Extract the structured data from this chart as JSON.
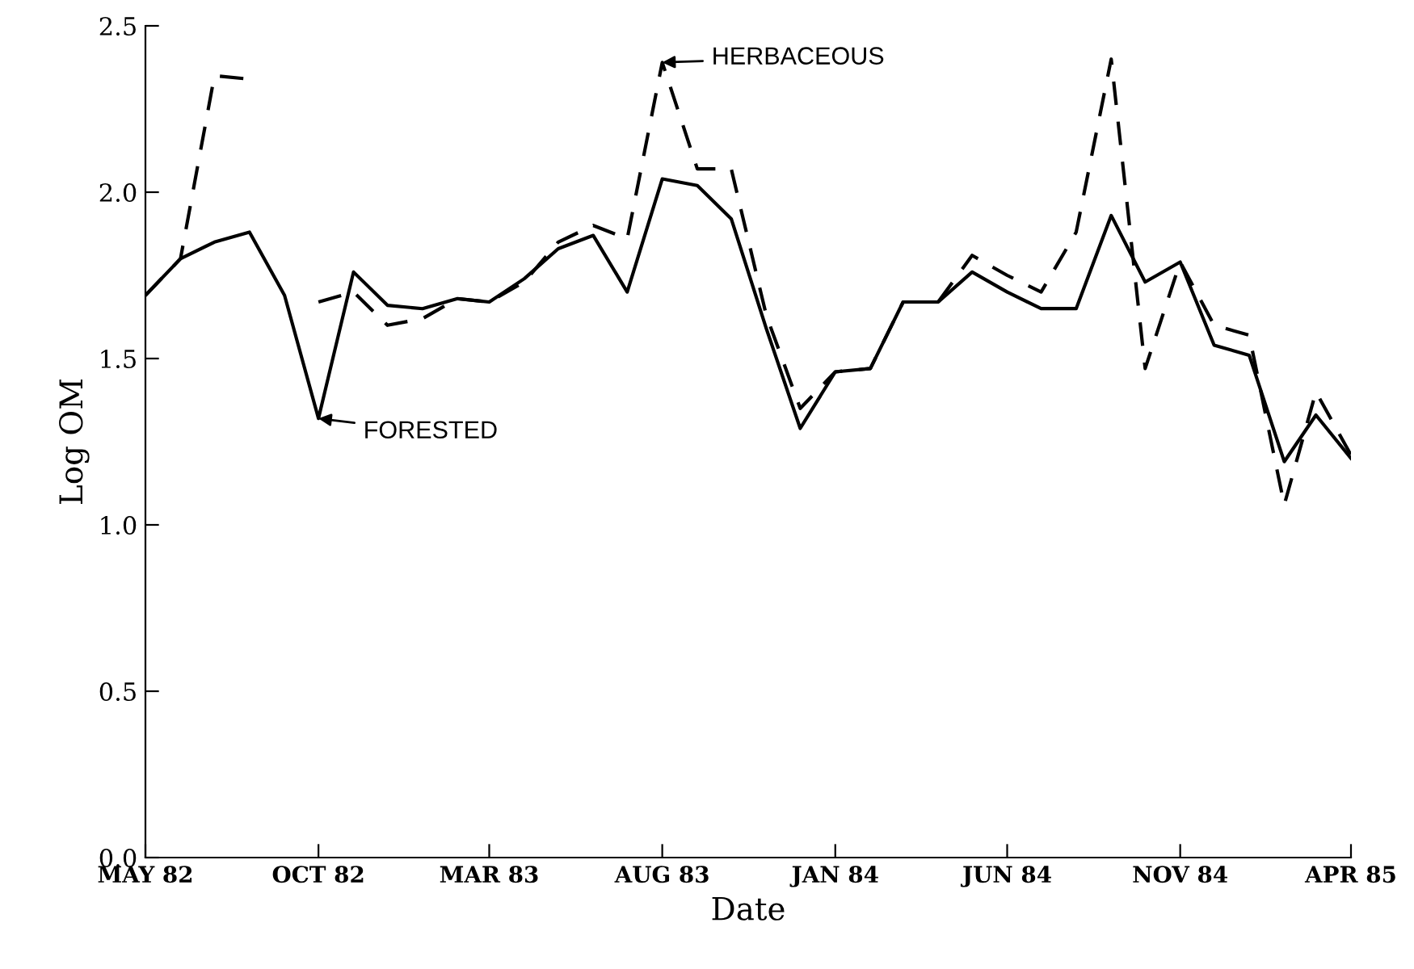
{
  "chart_data": {
    "type": "line",
    "xlabel": "Date",
    "ylabel": "Log OM",
    "x": [
      "1982-05",
      "1982-06",
      "1982-07",
      "1982-08",
      "1982-09",
      "1982-10",
      "1982-11",
      "1982-12",
      "1983-01",
      "1983-02",
      "1983-03",
      "1983-04",
      "1983-05",
      "1983-06",
      "1983-07",
      "1983-08",
      "1983-09",
      "1983-10",
      "1983-11",
      "1983-12",
      "1984-01",
      "1984-02",
      "1984-03",
      "1984-04",
      "1984-05",
      "1984-06",
      "1984-07",
      "1984-08",
      "1984-09",
      "1984-10",
      "1984-11",
      "1984-12",
      "1985-01",
      "1985-02",
      "1985-03",
      "1985-04"
    ],
    "series": [
      {
        "color": "#000000",
        "line_style": "solid",
        "values": [
          1.69,
          1.8,
          1.85,
          1.88,
          1.69,
          1.32,
          1.76,
          1.66,
          1.65,
          1.68,
          1.67,
          1.74,
          1.83,
          1.87,
          1.7,
          2.04,
          2.02,
          1.92,
          1.59,
          1.29,
          1.46,
          1.47,
          1.67,
          1.67,
          1.76,
          1.7,
          1.65,
          1.65,
          1.93,
          1.73,
          1.79,
          1.54,
          1.51,
          1.19,
          1.33,
          1.2
        ]
      },
      {
        "color": "#000000",
        "line_style": "dashed",
        "values": [
          1.69,
          1.8,
          2.35,
          2.34,
          null,
          1.67,
          1.7,
          1.6,
          1.62,
          1.68,
          1.67,
          1.73,
          1.85,
          1.9,
          1.86,
          2.39,
          2.07,
          2.07,
          1.63,
          1.35,
          1.46,
          1.47,
          1.67,
          1.67,
          1.81,
          1.75,
          1.7,
          1.88,
          2.4,
          1.47,
          1.79,
          1.6,
          1.57,
          1.06,
          1.4,
          1.21
        ]
      }
    ],
    "annotations": [
      {
        "text": "FORESTED",
        "x": "1982-10",
        "y": 1.32
      },
      {
        "text": "HERBACEOUS",
        "x": "1983-08",
        "y": 2.39
      }
    ],
    "xlim": [
      "1982-05",
      "1985-04"
    ],
    "xticks": [
      {
        "value": "1982-05",
        "label": "MAY 82"
      },
      {
        "value": "1982-10",
        "label": "OCT 82"
      },
      {
        "value": "1983-03",
        "label": "MAR 83"
      },
      {
        "value": "1983-08",
        "label": "AUG 83"
      },
      {
        "value": "1984-01",
        "label": "JAN 84"
      },
      {
        "value": "1984-06",
        "label": "JUN 84"
      },
      {
        "value": "1984-11",
        "label": "NOV 84"
      },
      {
        "value": "1985-04",
        "label": "APR 85"
      }
    ],
    "ylim": [
      0,
      2.5
    ],
    "yticks": [
      {
        "value": 0,
        "label": "0.0"
      },
      {
        "value": 0.5,
        "label": "0.5"
      },
      {
        "value": 1,
        "label": "1.0"
      },
      {
        "value": 1.5,
        "label": "1.5"
      },
      {
        "value": 2,
        "label": "2.0"
      },
      {
        "value": 2.5,
        "label": "2.5"
      }
    ],
    "grid": false,
    "legend": false
  }
}
